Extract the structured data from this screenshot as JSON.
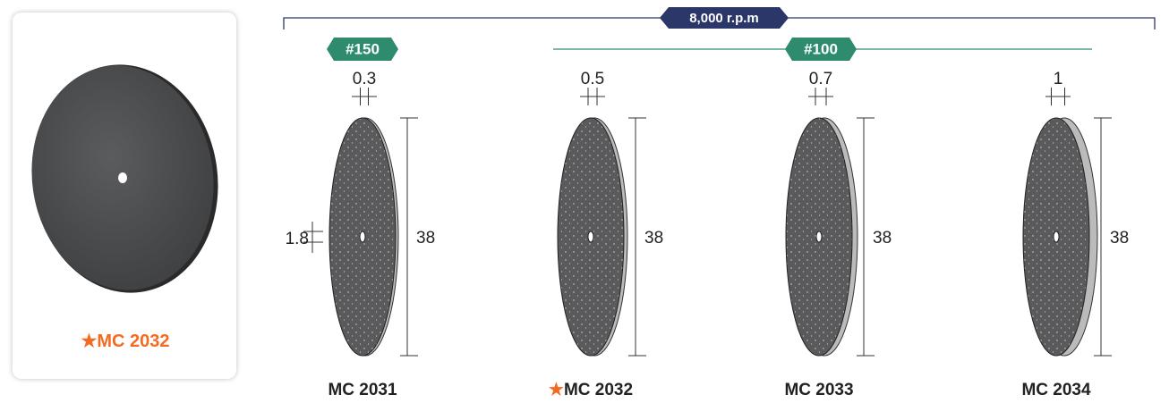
{
  "featured": {
    "star": "★",
    "name": "MC 2032"
  },
  "speed": "8,000 r.p.m",
  "grits": [
    {
      "label": "#150"
    },
    {
      "label": "#100"
    }
  ],
  "products": [
    {
      "name": "MC 2031",
      "thickness": "0.3",
      "diameter": "38",
      "hole": "1.8"
    },
    {
      "star": "★",
      "name": "MC 2032",
      "thickness": "0.5",
      "diameter": "38"
    },
    {
      "name": "MC 2033",
      "thickness": "0.7",
      "diameter": "38"
    },
    {
      "name": "MC 2034",
      "thickness": "1",
      "diameter": "38"
    }
  ]
}
